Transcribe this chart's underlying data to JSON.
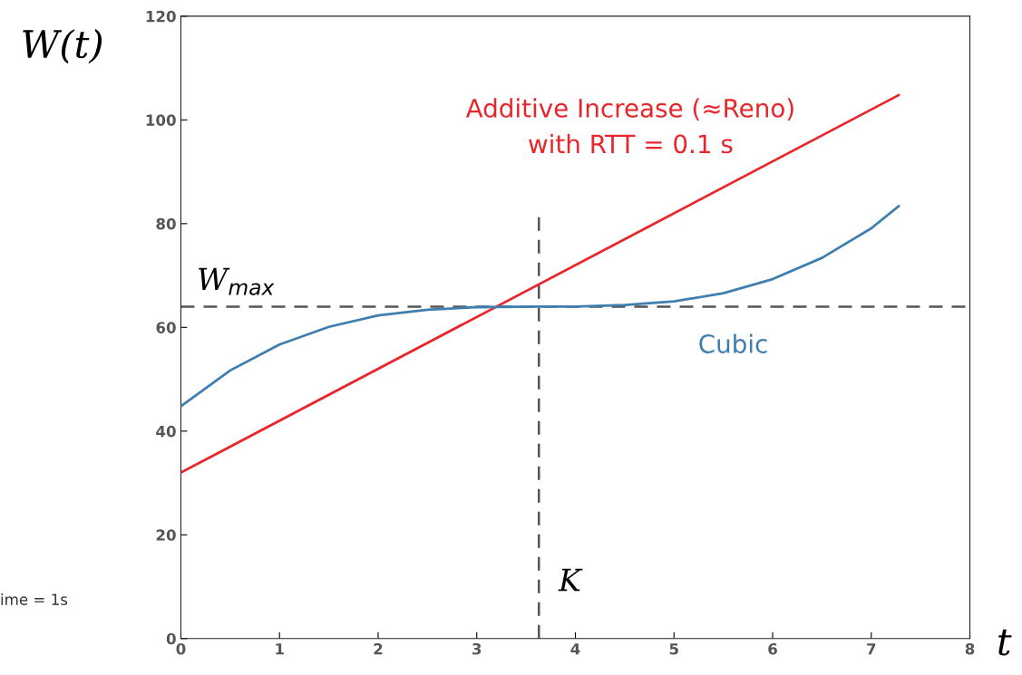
{
  "chart_data": {
    "type": "line",
    "ylabel": "W(t)",
    "xlabel": "t",
    "xlim": [
      0,
      8
    ],
    "xticks": [
      0,
      1,
      2,
      3,
      4,
      5,
      6,
      7,
      8
    ],
    "ylim": [
      0,
      120
    ],
    "yticks": [
      0,
      20,
      40,
      60,
      80,
      100,
      120
    ],
    "grid": false,
    "series": [
      {
        "name": "Additive Increase (≈Reno)\nwith RTT = 0.1 s",
        "color": "#e8262b",
        "x": [
          0,
          7.28
        ],
        "values": [
          32,
          104.8
        ]
      },
      {
        "name": "Cubic",
        "color": "#3f7fb0",
        "x": [
          0,
          0.5,
          1,
          1.5,
          2,
          2.5,
          3,
          3.63,
          4,
          4.5,
          5,
          5.5,
          6,
          6.5,
          7,
          7.28
        ],
        "values": [
          44.8,
          51.7,
          56.7,
          60.1,
          62.3,
          63.4,
          63.9,
          64,
          64,
          64.3,
          65,
          66.6,
          69.3,
          73.4,
          79.1,
          83.4
        ]
      }
    ],
    "ref_lines": [
      {
        "axis": "y",
        "value": 64,
        "label": "W$_{max}$",
        "color": "#555555",
        "line_style": "dashed"
      },
      {
        "axis": "x",
        "value": 3.63,
        "label": "K",
        "color": "#555555",
        "line_style": "dashed"
      }
    ],
    "annotations": [
      "ime = 1s"
    ]
  }
}
